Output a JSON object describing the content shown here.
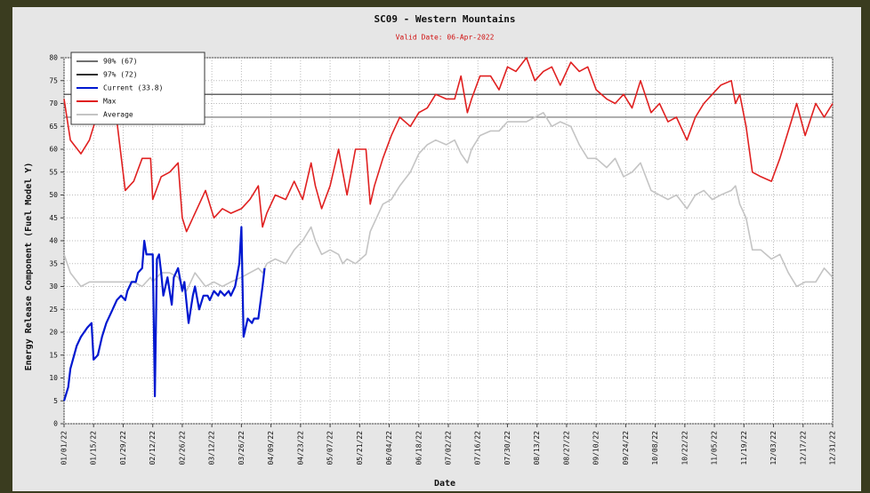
{
  "chart_data": {
    "type": "line",
    "title": "SC09 - Western Mountains",
    "subtitle": "Valid Date: 06-Apr-2022",
    "xlabel": "Date",
    "ylabel": "Energy Release Component (Fuel Model Y)",
    "ylim": [
      0,
      80
    ],
    "yticks": [
      0,
      5,
      10,
      15,
      20,
      25,
      30,
      35,
      40,
      45,
      50,
      55,
      60,
      65,
      70,
      75,
      80
    ],
    "xlim": [
      0,
      364
    ],
    "xticks": [
      {
        "value": 0,
        "label": "01/01/22"
      },
      {
        "value": 14,
        "label": "01/15/22"
      },
      {
        "value": 28,
        "label": "01/29/22"
      },
      {
        "value": 42,
        "label": "02/12/22"
      },
      {
        "value": 56,
        "label": "02/26/22"
      },
      {
        "value": 70,
        "label": "03/12/22"
      },
      {
        "value": 84,
        "label": "03/26/22"
      },
      {
        "value": 98,
        "label": "04/09/22"
      },
      {
        "value": 112,
        "label": "04/23/22"
      },
      {
        "value": 126,
        "label": "05/07/22"
      },
      {
        "value": 140,
        "label": "05/21/22"
      },
      {
        "value": 154,
        "label": "06/04/22"
      },
      {
        "value": 168,
        "label": "06/18/22"
      },
      {
        "value": 182,
        "label": "07/02/22"
      },
      {
        "value": 196,
        "label": "07/16/22"
      },
      {
        "value": 210,
        "label": "07/30/22"
      },
      {
        "value": 224,
        "label": "08/13/22"
      },
      {
        "value": 238,
        "label": "08/27/22"
      },
      {
        "value": 252,
        "label": "09/10/22"
      },
      {
        "value": 266,
        "label": "09/24/22"
      },
      {
        "value": 280,
        "label": "10/08/22"
      },
      {
        "value": 294,
        "label": "10/22/22"
      },
      {
        "value": 308,
        "label": "11/05/22"
      },
      {
        "value": 322,
        "label": "11/19/22"
      },
      {
        "value": 336,
        "label": "12/03/22"
      },
      {
        "value": 350,
        "label": "12/17/22"
      },
      {
        "value": 364,
        "label": "12/31/22"
      }
    ],
    "grid": true,
    "legend": "upper-left",
    "thresholds": [
      {
        "name": "90% (67)",
        "value": 67,
        "color": "#707070"
      },
      {
        "name": "97% (72)",
        "value": 72,
        "color": "#303030"
      }
    ],
    "series": [
      {
        "name": "Current (33.8)",
        "color": "#0018d0",
        "x": [
          0,
          2,
          3,
          6,
          8,
          11,
          13,
          14,
          16,
          18,
          20,
          23,
          25,
          27,
          29,
          30,
          32,
          34,
          35,
          37,
          38,
          39,
          41,
          42,
          43,
          44,
          45,
          46,
          47,
          49,
          51,
          52,
          54,
          56,
          57,
          59,
          61,
          62,
          64,
          66,
          68,
          69,
          71,
          73,
          74,
          76,
          78,
          79,
          81,
          83,
          84,
          85,
          87,
          89,
          90,
          92,
          94,
          95
        ],
        "values": [
          5,
          8,
          12,
          17,
          19,
          21,
          22,
          14,
          15,
          19,
          22,
          25,
          27,
          28,
          27,
          29,
          31,
          31,
          33,
          34,
          40,
          37,
          37,
          37,
          6,
          36,
          37,
          33,
          28,
          32,
          26,
          32,
          34,
          29,
          31,
          22,
          28,
          30,
          25,
          28,
          28,
          27,
          29,
          28,
          29,
          28,
          29,
          28,
          30,
          35,
          43,
          19,
          23,
          22,
          23,
          23,
          30,
          34
        ]
      },
      {
        "name": "Max",
        "color": "#e02020",
        "x": [
          0,
          3,
          8,
          12,
          16,
          20,
          24,
          29,
          33,
          37,
          41,
          42,
          46,
          50,
          54,
          56,
          58,
          62,
          67,
          71,
          75,
          79,
          84,
          88,
          92,
          94,
          96,
          100,
          105,
          109,
          113,
          117,
          119,
          122,
          126,
          130,
          132,
          134,
          138,
          143,
          145,
          147,
          151,
          155,
          159,
          164,
          168,
          172,
          176,
          181,
          185,
          188,
          191,
          193,
          197,
          202,
          206,
          210,
          214,
          219,
          223,
          227,
          231,
          235,
          240,
          244,
          248,
          252,
          257,
          261,
          265,
          269,
          273,
          278,
          282,
          286,
          290,
          295,
          299,
          303,
          307,
          311,
          316,
          318,
          320,
          323,
          326,
          330,
          335,
          339,
          343,
          347,
          351,
          356,
          360,
          364
        ],
        "values": [
          71,
          62,
          59,
          62,
          68,
          72,
          70,
          51,
          53,
          58,
          58,
          49,
          54,
          55,
          57,
          45,
          42,
          46,
          51,
          45,
          47,
          46,
          47,
          49,
          52,
          43,
          46,
          50,
          49,
          53,
          49,
          57,
          52,
          47,
          52,
          60,
          55,
          50,
          60,
          60,
          48,
          52,
          58,
          63,
          67,
          65,
          68,
          69,
          72,
          71,
          71,
          76,
          68,
          71,
          76,
          76,
          73,
          78,
          77,
          80,
          75,
          77,
          78,
          74,
          79,
          77,
          78,
          73,
          71,
          70,
          72,
          69,
          75,
          68,
          70,
          66,
          67,
          62,
          67,
          70,
          72,
          74,
          75,
          70,
          72,
          65,
          55,
          54,
          53,
          58,
          64,
          70,
          63,
          70,
          67,
          70
        ]
      },
      {
        "name": "Average",
        "color": "#c4c4c4",
        "x": [
          0,
          3,
          8,
          12,
          16,
          20,
          24,
          29,
          33,
          37,
          41,
          42,
          46,
          50,
          54,
          56,
          58,
          62,
          67,
          71,
          75,
          79,
          84,
          88,
          92,
          94,
          96,
          100,
          105,
          109,
          113,
          117,
          119,
          122,
          126,
          130,
          132,
          134,
          138,
          143,
          145,
          147,
          151,
          155,
          159,
          164,
          168,
          172,
          176,
          181,
          185,
          188,
          191,
          193,
          197,
          202,
          206,
          210,
          214,
          219,
          223,
          227,
          231,
          235,
          240,
          244,
          248,
          252,
          257,
          261,
          265,
          269,
          273,
          278,
          282,
          286,
          290,
          295,
          299,
          303,
          307,
          311,
          316,
          318,
          320,
          323,
          326,
          330,
          335,
          339,
          343,
          347,
          351,
          356,
          360,
          364
        ],
        "values": [
          37,
          33,
          30,
          31,
          31,
          31,
          31,
          31,
          31,
          30,
          32,
          31,
          33,
          33,
          32,
          30,
          29,
          33,
          30,
          31,
          30,
          31,
          32,
          33,
          34,
          33,
          35,
          36,
          35,
          38,
          40,
          43,
          40,
          37,
          38,
          37,
          35,
          36,
          35,
          37,
          42,
          44,
          48,
          49,
          52,
          55,
          59,
          61,
          62,
          61,
          62,
          59,
          57,
          60,
          63,
          64,
          64,
          66,
          66,
          66,
          67,
          68,
          65,
          66,
          65,
          61,
          58,
          58,
          56,
          58,
          54,
          55,
          57,
          51,
          50,
          49,
          50,
          47,
          50,
          51,
          49,
          50,
          51,
          52,
          48,
          45,
          38,
          38,
          36,
          37,
          33,
          30,
          31,
          31,
          34,
          32
        ]
      }
    ]
  }
}
